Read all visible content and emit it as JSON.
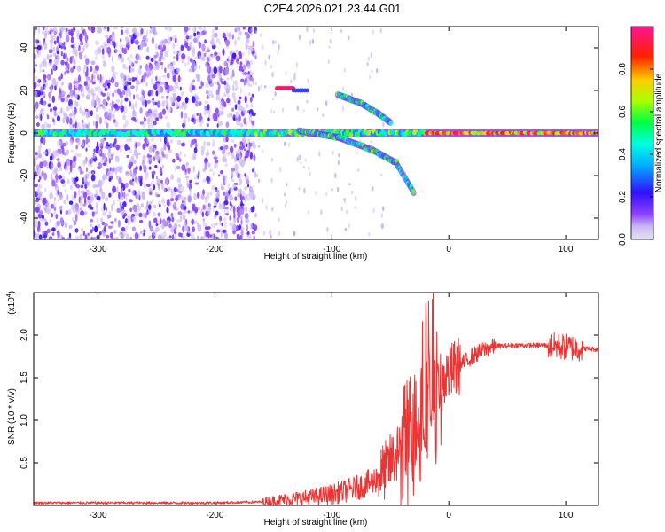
{
  "title": "C2E4.2026.021.23.44.G01",
  "chart_data": [
    {
      "type": "heatmap",
      "name": "spectrogram",
      "xlabel": "Height of straight line (km)",
      "ylabel": "Frequency (Hz)",
      "xlim": [
        -355,
        128
      ],
      "ylim": [
        -50,
        50
      ],
      "xticks": [
        -300,
        -200,
        -100,
        0,
        100
      ],
      "yticks": [
        -40,
        -20,
        0,
        20,
        40
      ],
      "colorbar": {
        "label": "Normalized spectral amplitude",
        "range": [
          0,
          1
        ],
        "ticks": [
          0.0,
          0.2,
          0.4,
          0.6,
          0.8
        ]
      },
      "features": [
        {
          "kind": "carrier",
          "freq": 0,
          "x_from": -355,
          "x_to": 128
        },
        {
          "kind": "tone",
          "freq": 21,
          "x_from": -147,
          "x_to": -133
        },
        {
          "kind": "curve",
          "x": [
            -128,
            -95,
            -65,
            -45,
            -30
          ],
          "freq": [
            1,
            -2,
            -8,
            -14,
            -28
          ]
        },
        {
          "kind": "curve",
          "x": [
            -95,
            -75,
            -60,
            -50
          ],
          "freq": [
            18,
            14,
            9,
            5
          ]
        }
      ]
    },
    {
      "type": "line",
      "name": "snr",
      "xlabel": "Height of straight line (km)",
      "ylabel": "SNR (10 * v/v)",
      "multiplier": "(x10",
      "multiplier_exp": "4",
      "xlim": [
        -355,
        128
      ],
      "ylim": [
        0,
        2.5
      ],
      "xticks": [
        -300,
        -200,
        -100,
        0,
        100
      ],
      "yticks": [
        0.5,
        1.0,
        1.5,
        2.0
      ],
      "color": "#ee3333",
      "series": [
        {
          "name": "SNR",
          "x": [
            -355,
            -300,
            -250,
            -200,
            -160,
            -140,
            -120,
            -100,
            -80,
            -65,
            -55,
            -45,
            -38,
            -32,
            -26,
            -20,
            -15,
            -10,
            -5,
            0,
            10,
            20,
            30,
            40,
            60,
            80,
            90,
            100,
            110,
            128
          ],
          "y": [
            0.03,
            0.03,
            0.03,
            0.03,
            0.04,
            0.07,
            0.09,
            0.13,
            0.2,
            0.28,
            0.4,
            0.6,
            0.75,
            0.95,
            1.1,
            1.2,
            1.3,
            1.4,
            1.45,
            1.55,
            1.65,
            1.75,
            1.83,
            1.87,
            1.88,
            1.88,
            1.87,
            1.86,
            1.85,
            1.83
          ]
        }
      ]
    }
  ],
  "colors": {
    "line": "#ee3333",
    "cmap": [
      "#ffffff",
      "#e2cdf5",
      "#a070ef",
      "#6a00dd",
      "#0000ff",
      "#00ccff",
      "#00ff66",
      "#ccff00",
      "#ffaa00",
      "#ff0000",
      "#ff1493"
    ]
  }
}
